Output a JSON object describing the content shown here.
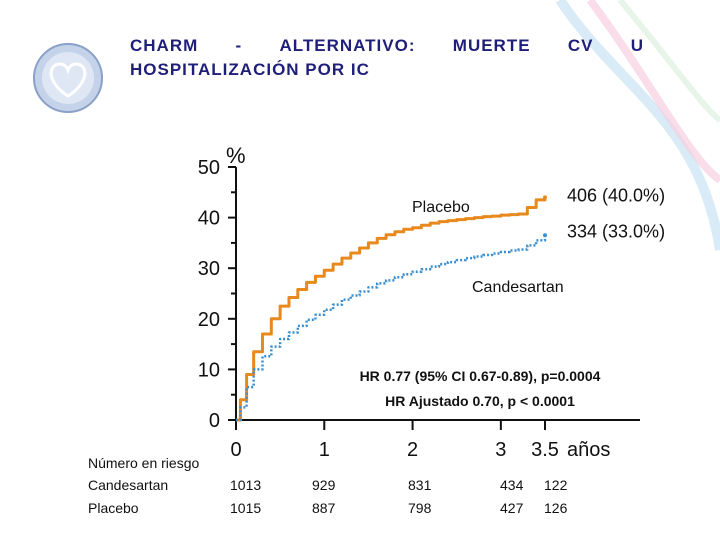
{
  "slide": {
    "title_line1": [
      "CHARM",
      "-",
      "ALTERNATIVO:",
      "MUERTE",
      "CV",
      "U"
    ],
    "title_line2": "HOSPITALIZACIÓN POR IC"
  },
  "chart_data": {
    "type": "line",
    "ylabel": "%",
    "ylim": [
      0,
      50
    ],
    "yticks": [
      "0",
      "10",
      "20",
      "30",
      "40",
      "50"
    ],
    "xlim": [
      0,
      3.5
    ],
    "xticks": [
      "0",
      "1",
      "2",
      "3",
      "3.5"
    ],
    "xunit": "años",
    "series": [
      {
        "name": "Placebo",
        "color": "#E8891E",
        "style": "solid",
        "end_label": "406 (40.0%)",
        "x": [
          0,
          0.05,
          0.12,
          0.2,
          0.3,
          0.4,
          0.5,
          0.6,
          0.7,
          0.8,
          0.9,
          1.0,
          1.1,
          1.2,
          1.3,
          1.4,
          1.5,
          1.6,
          1.7,
          1.8,
          1.9,
          2.0,
          2.1,
          2.2,
          2.3,
          2.4,
          2.5,
          2.6,
          2.7,
          2.8,
          2.9,
          3.0,
          3.1,
          3.2,
          3.3,
          3.4,
          3.5
        ],
        "y": [
          0,
          4.0,
          9.0,
          13.5,
          17.0,
          20.0,
          22.5,
          24.2,
          25.8,
          27.2,
          28.4,
          29.6,
          30.8,
          32.0,
          33.0,
          34.0,
          35.0,
          35.9,
          36.6,
          37.2,
          37.7,
          38.0,
          38.5,
          38.9,
          39.2,
          39.4,
          39.6,
          39.8,
          40.0,
          40.2,
          40.3,
          40.5,
          40.6,
          40.7,
          42.0,
          43.5,
          44.0
        ]
      },
      {
        "name": "Candesartan",
        "color": "#3B8FD0",
        "style": "dotted",
        "end_label": "334 (33.0%)",
        "x": [
          0,
          0.05,
          0.12,
          0.2,
          0.3,
          0.4,
          0.5,
          0.6,
          0.7,
          0.8,
          0.9,
          1.0,
          1.1,
          1.2,
          1.3,
          1.4,
          1.5,
          1.6,
          1.7,
          1.8,
          1.9,
          2.0,
          2.1,
          2.2,
          2.3,
          2.4,
          2.5,
          2.6,
          2.7,
          2.8,
          2.9,
          3.0,
          3.1,
          3.2,
          3.3,
          3.4,
          3.5
        ],
        "y": [
          0,
          2.5,
          6.5,
          10.0,
          12.6,
          14.5,
          16.0,
          17.3,
          18.6,
          19.8,
          20.8,
          21.8,
          22.8,
          23.8,
          24.6,
          25.4,
          26.2,
          27.0,
          27.6,
          28.2,
          28.8,
          29.3,
          29.8,
          30.3,
          30.8,
          31.2,
          31.6,
          32.0,
          32.3,
          32.6,
          32.9,
          33.2,
          33.5,
          33.7,
          34.5,
          35.5,
          36.5
        ]
      }
    ],
    "annotations": {
      "placebo_label": "Placebo",
      "candesartan_label": "Candesartan",
      "hr_line1": "HR 0.77 (95% CI 0.67-0.89), p=0.0004",
      "hr_line2": "HR Ajustado 0.70, p < 0.0001"
    },
    "risk_table": {
      "header": "Número en riesgo",
      "rows": [
        {
          "label": "Candesartan",
          "values": [
            "1013",
            "929",
            "831",
            "434",
            "122"
          ]
        },
        {
          "label": "Placebo",
          "values": [
            "1015",
            "887",
            "798",
            "427",
            "126"
          ]
        }
      ]
    }
  }
}
